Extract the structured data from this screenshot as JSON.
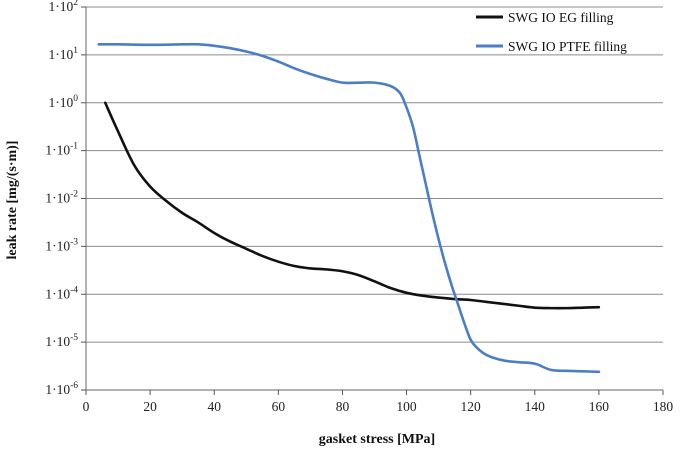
{
  "chart_data": {
    "type": "line",
    "title": "",
    "xlabel": "gasket stress [MPa]",
    "ylabel": "leak rate [mg/(s·m)]",
    "xlim": [
      0,
      180
    ],
    "x_ticks": [
      0,
      20,
      40,
      60,
      80,
      100,
      120,
      140,
      160,
      180
    ],
    "y_scale": "log",
    "ylim_exp": [
      -6,
      2
    ],
    "y_tick_exps": [
      2,
      1,
      0,
      -1,
      -2,
      -3,
      -4,
      -5,
      -6
    ],
    "y_tick_base": "1·10",
    "grid": "horizontal",
    "legend_position": "top-right",
    "series": [
      {
        "name": "SWG IO EG filling",
        "color": "#111111",
        "points": [
          [
            6,
            0.0
          ],
          [
            10,
            -0.6
          ],
          [
            15,
            -1.3
          ],
          [
            20,
            -1.75
          ],
          [
            25,
            -2.05
          ],
          [
            30,
            -2.3
          ],
          [
            35,
            -2.5
          ],
          [
            40,
            -2.72
          ],
          [
            45,
            -2.9
          ],
          [
            50,
            -3.05
          ],
          [
            55,
            -3.2
          ],
          [
            60,
            -3.32
          ],
          [
            65,
            -3.41
          ],
          [
            70,
            -3.46
          ],
          [
            75,
            -3.48
          ],
          [
            80,
            -3.52
          ],
          [
            85,
            -3.6
          ],
          [
            90,
            -3.73
          ],
          [
            95,
            -3.87
          ],
          [
            100,
            -3.97
          ],
          [
            105,
            -4.03
          ],
          [
            110,
            -4.07
          ],
          [
            115,
            -4.1
          ],
          [
            120,
            -4.12
          ],
          [
            125,
            -4.16
          ],
          [
            130,
            -4.2
          ],
          [
            135,
            -4.24
          ],
          [
            140,
            -4.28
          ],
          [
            145,
            -4.29
          ],
          [
            150,
            -4.29
          ],
          [
            155,
            -4.28
          ],
          [
            160,
            -4.27
          ]
        ]
      },
      {
        "name": "SWG IO PTFE filling",
        "color": "#4A7EC7",
        "points": [
          [
            4,
            1.22
          ],
          [
            10,
            1.22
          ],
          [
            20,
            1.21
          ],
          [
            30,
            1.22
          ],
          [
            35,
            1.22
          ],
          [
            40,
            1.19
          ],
          [
            45,
            1.14
          ],
          [
            50,
            1.07
          ],
          [
            55,
            0.98
          ],
          [
            60,
            0.86
          ],
          [
            65,
            0.72
          ],
          [
            70,
            0.6
          ],
          [
            75,
            0.5
          ],
          [
            80,
            0.42
          ],
          [
            85,
            0.42
          ],
          [
            90,
            0.42
          ],
          [
            95,
            0.35
          ],
          [
            98,
            0.2
          ],
          [
            100,
            -0.1
          ],
          [
            102,
            -0.5
          ],
          [
            104,
            -1.1
          ],
          [
            106,
            -1.7
          ],
          [
            108,
            -2.3
          ],
          [
            110,
            -2.85
          ],
          [
            112,
            -3.35
          ],
          [
            114,
            -3.8
          ],
          [
            116,
            -4.2
          ],
          [
            118,
            -4.6
          ],
          [
            120,
            -4.95
          ],
          [
            122,
            -5.12
          ],
          [
            125,
            -5.27
          ],
          [
            130,
            -5.38
          ],
          [
            135,
            -5.42
          ],
          [
            140,
            -5.45
          ],
          [
            145,
            -5.58
          ],
          [
            150,
            -5.6
          ],
          [
            155,
            -5.61
          ],
          [
            160,
            -5.62
          ]
        ]
      }
    ]
  }
}
